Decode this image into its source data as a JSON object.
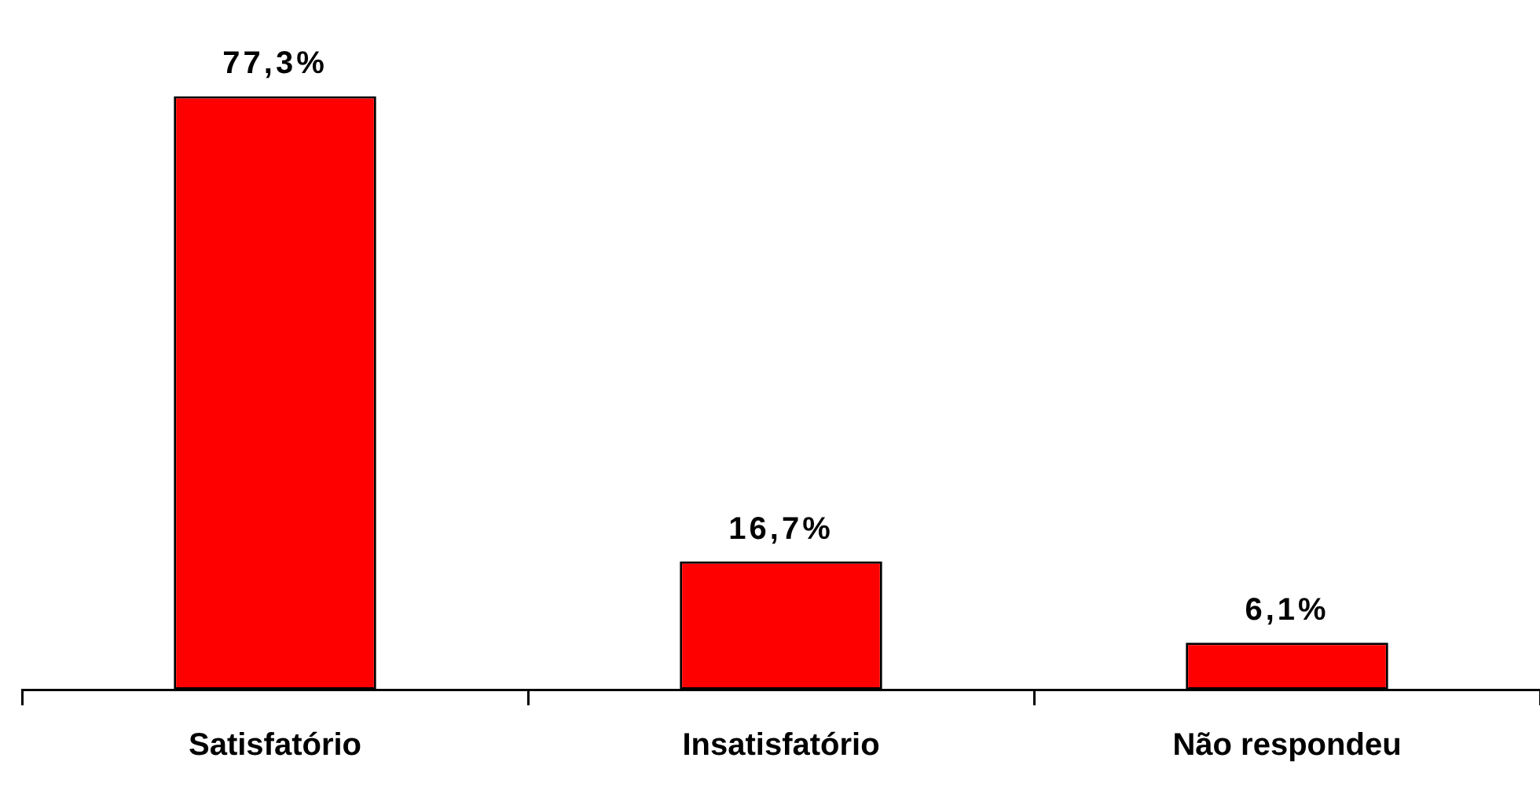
{
  "chart_data": {
    "type": "bar",
    "categories": [
      "Satisfatório",
      "Insatisfatório",
      "Não respondeu"
    ],
    "values": [
      77.3,
      16.7,
      6.1
    ],
    "value_labels": [
      "77,3%",
      "16,7%",
      "6,1%"
    ],
    "color": "#ff0000",
    "grid": false,
    "legend": false
  }
}
